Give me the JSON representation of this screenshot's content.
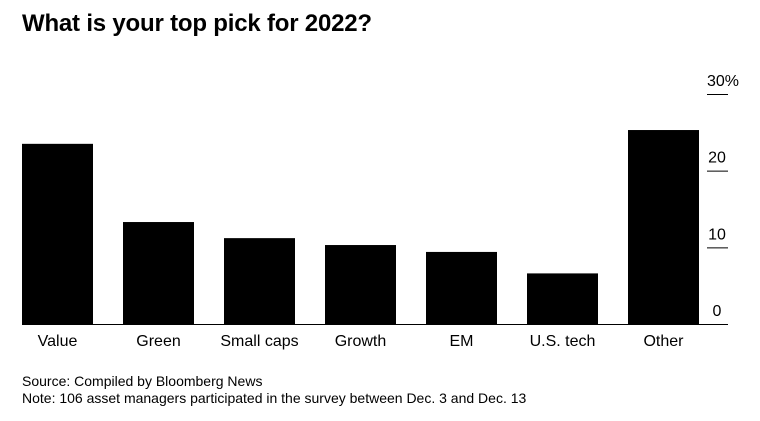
{
  "chart_data": {
    "type": "bar",
    "title": "What is your top pick for 2022?",
    "categories": [
      "Value",
      "Green",
      "Small caps",
      "Growth",
      "EM",
      "U.S. tech",
      "Other"
    ],
    "values": [
      23.5,
      13.3,
      11.2,
      10.3,
      9.4,
      6.6,
      25.3
    ],
    "ylim": [
      0,
      30
    ],
    "yticks": [
      0,
      10,
      20,
      30
    ],
    "ytick_labels": [
      "0",
      "10",
      "20",
      "30%"
    ],
    "xlabel": "",
    "ylabel": "",
    "y_axis_side": "right"
  },
  "footer": {
    "source": "Source: Compiled by Bloomberg News",
    "note": "Note: 106 asset managers participated in the survey between Dec. 3 and Dec. 13"
  },
  "colors": {
    "bar": "#000000",
    "background": "#ffffff"
  }
}
